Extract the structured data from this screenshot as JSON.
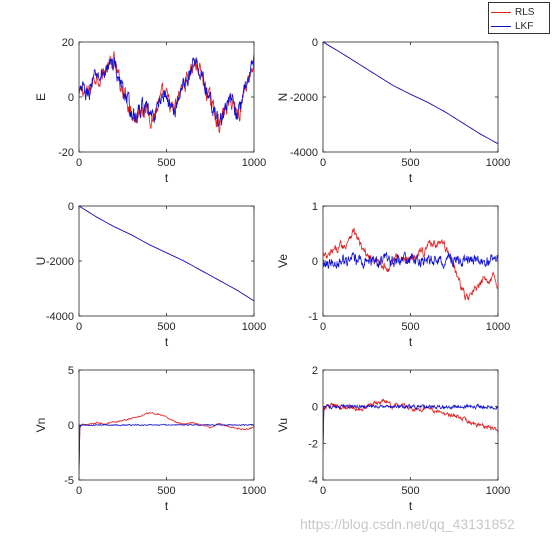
{
  "watermark": "https://blog.csdn.net/qq_43131852",
  "colors": {
    "RLS": "#e02020",
    "LKF": "#1010d0"
  },
  "legend": [
    {
      "name": "RLS",
      "color": "#e02020"
    },
    {
      "name": "LKF",
      "color": "#1010d0"
    }
  ],
  "chart_data": [
    {
      "type": "line",
      "id": "E",
      "xlabel": "t",
      "ylabel": "E",
      "xlim": [
        0,
        1000
      ],
      "ylim": [
        -20,
        20
      ],
      "xticks": [
        "0",
        "500",
        "1000"
      ],
      "xtick_values": [
        0,
        500,
        1000
      ],
      "yticks": [
        "-20",
        "0",
        "20"
      ],
      "ytick_values": [
        -20,
        0,
        20
      ],
      "series": [
        {
          "name": "RLS",
          "color": "#e02020",
          "x": [
            0,
            20,
            40,
            60,
            80,
            100,
            120,
            140,
            160,
            180,
            200,
            220,
            240,
            260,
            280,
            300,
            320,
            340,
            360,
            380,
            400,
            420,
            440,
            460,
            480,
            500,
            520,
            540,
            560,
            580,
            600,
            620,
            640,
            660,
            680,
            700,
            720,
            740,
            760,
            780,
            800,
            820,
            840,
            860,
            880,
            900,
            920,
            940,
            960,
            980,
            1000
          ],
          "y": [
            0,
            3,
            1,
            2,
            6,
            8,
            7,
            9,
            10,
            12,
            13,
            8,
            4,
            2,
            -2,
            -5,
            -8,
            -6,
            -3,
            -5,
            -6,
            -8,
            -5,
            -2,
            1,
            0,
            -3,
            -6,
            -2,
            2,
            5,
            7,
            10,
            12,
            11,
            8,
            4,
            0,
            -3,
            -6,
            -10,
            -7,
            -4,
            -2,
            -1,
            -6,
            -5,
            2,
            6,
            9,
            13
          ],
          "noise": 2.5
        },
        {
          "name": "LKF",
          "color": "#1010d0",
          "x": [
            0,
            20,
            40,
            60,
            80,
            100,
            120,
            140,
            160,
            180,
            200,
            220,
            240,
            260,
            280,
            300,
            320,
            340,
            360,
            380,
            400,
            420,
            440,
            460,
            480,
            500,
            520,
            540,
            560,
            580,
            600,
            620,
            640,
            660,
            680,
            700,
            720,
            740,
            760,
            780,
            800,
            820,
            840,
            860,
            880,
            900,
            920,
            940,
            960,
            980,
            1000
          ],
          "y": [
            0,
            3,
            1,
            2,
            6,
            8,
            7,
            9,
            10,
            12,
            13,
            8,
            4,
            2,
            -2,
            -5,
            -8,
            -6,
            -3,
            -5,
            -6,
            -8,
            -5,
            -2,
            1,
            0,
            -3,
            -6,
            -2,
            2,
            5,
            7,
            10,
            12,
            11,
            8,
            4,
            0,
            -3,
            -6,
            -10,
            -7,
            -4,
            -2,
            -1,
            -6,
            -5,
            2,
            6,
            9,
            13
          ],
          "noise": 2.5
        }
      ]
    },
    {
      "type": "line",
      "id": "N",
      "xlabel": "t",
      "ylabel": "N",
      "xlim": [
        0,
        1000
      ],
      "ylim": [
        -4000,
        0
      ],
      "xticks": [
        "0",
        "500",
        "1000"
      ],
      "xtick_values": [
        0,
        500,
        1000
      ],
      "yticks": [
        "-4000",
        "-2000",
        "0"
      ],
      "ytick_values": [
        -4000,
        -2000,
        0
      ],
      "series": [
        {
          "name": "RLS",
          "color": "#e02020",
          "x": [
            0,
            100,
            200,
            300,
            400,
            500,
            600,
            700,
            800,
            900,
            1000
          ],
          "y": [
            0,
            -380,
            -780,
            -1180,
            -1580,
            -1900,
            -2200,
            -2550,
            -2950,
            -3350,
            -3700
          ],
          "noise": 0
        },
        {
          "name": "LKF",
          "color": "#1010d0",
          "x": [
            0,
            100,
            200,
            300,
            400,
            500,
            600,
            700,
            800,
            900,
            1000
          ],
          "y": [
            0,
            -380,
            -780,
            -1180,
            -1580,
            -1900,
            -2200,
            -2550,
            -2950,
            -3350,
            -3700
          ],
          "noise": 0
        }
      ]
    },
    {
      "type": "line",
      "id": "U",
      "xlabel": "t",
      "ylabel": "U",
      "xlim": [
        0,
        1000
      ],
      "ylim": [
        -4000,
        0
      ],
      "xticks": [
        "0",
        "500",
        "1000"
      ],
      "xtick_values": [
        0,
        500,
        1000
      ],
      "yticks": [
        "-4000",
        "-2000",
        "0"
      ],
      "ytick_values": [
        -4000,
        -2000,
        0
      ],
      "series": [
        {
          "name": "RLS",
          "color": "#e02020",
          "x": [
            0,
            100,
            200,
            300,
            400,
            500,
            600,
            700,
            800,
            900,
            1000
          ],
          "y": [
            0,
            -400,
            -750,
            -1050,
            -1400,
            -1700,
            -2000,
            -2350,
            -2700,
            -3050,
            -3450
          ],
          "noise": 0
        },
        {
          "name": "LKF",
          "color": "#1010d0",
          "x": [
            0,
            100,
            200,
            300,
            400,
            500,
            600,
            700,
            800,
            900,
            1000
          ],
          "y": [
            0,
            -400,
            -750,
            -1050,
            -1400,
            -1700,
            -2000,
            -2350,
            -2700,
            -3050,
            -3450
          ],
          "noise": 0
        }
      ]
    },
    {
      "type": "line",
      "id": "Ve",
      "xlabel": "t",
      "ylabel": "Ve",
      "xlim": [
        0,
        1000
      ],
      "ylim": [
        -1,
        1
      ],
      "xticks": [
        "0",
        "500",
        "1000"
      ],
      "xtick_values": [
        0,
        500,
        1000
      ],
      "yticks": [
        "-1",
        "0",
        "1"
      ],
      "ytick_values": [
        -1,
        0,
        1
      ],
      "series": [
        {
          "name": "RLS",
          "color": "#e02020",
          "x": [
            0,
            25,
            50,
            75,
            100,
            125,
            150,
            175,
            200,
            225,
            250,
            275,
            300,
            325,
            350,
            375,
            400,
            425,
            450,
            475,
            500,
            525,
            550,
            575,
            600,
            625,
            650,
            675,
            700,
            725,
            750,
            775,
            800,
            825,
            850,
            875,
            900,
            925,
            950,
            975,
            1000
          ],
          "y": [
            0.1,
            0.05,
            0.15,
            0.2,
            0.3,
            0.25,
            0.45,
            0.55,
            0.4,
            0.2,
            0.1,
            0.05,
            -0.05,
            0.0,
            -0.1,
            -0.15,
            0.0,
            0.1,
            0.05,
            0.0,
            0.05,
            0.1,
            0.2,
            0.15,
            0.3,
            0.35,
            0.3,
            0.35,
            0.25,
            0.1,
            -0.1,
            -0.35,
            -0.55,
            -0.7,
            -0.6,
            -0.5,
            -0.45,
            -0.3,
            -0.35,
            -0.25,
            -0.45
          ],
          "noise": 0.06
        },
        {
          "name": "LKF",
          "color": "#1010d0",
          "x": [
            0,
            100,
            200,
            300,
            400,
            500,
            600,
            700,
            800,
            900,
            1000
          ],
          "y": [
            0,
            0,
            0,
            0,
            0,
            0,
            0,
            0,
            0,
            0,
            0
          ],
          "noise": 0.09
        }
      ]
    },
    {
      "type": "line",
      "id": "Vn",
      "xlabel": "t",
      "ylabel": "Vn",
      "xlim": [
        0,
        1000
      ],
      "ylim": [
        -5,
        5
      ],
      "xticks": [
        "0",
        "500",
        "1000"
      ],
      "xtick_values": [
        0,
        500,
        1000
      ],
      "yticks": [
        "-5",
        "0",
        "5"
      ],
      "ytick_values": [
        -5,
        0,
        5
      ],
      "series": [
        {
          "name": "RLS",
          "color": "#e02020",
          "x": [
            0,
            5,
            20,
            50,
            100,
            150,
            200,
            250,
            300,
            350,
            400,
            450,
            500,
            550,
            600,
            650,
            700,
            750,
            800,
            850,
            900,
            950,
            1000
          ],
          "y": [
            -4.5,
            -0.2,
            0.1,
            0.0,
            0.2,
            0.1,
            0.3,
            0.4,
            0.6,
            0.8,
            1.1,
            1.0,
            0.7,
            0.3,
            0.1,
            0.2,
            0.0,
            -0.2,
            0.1,
            -0.1,
            -0.3,
            -0.4,
            -0.2
          ],
          "noise": 0.05
        },
        {
          "name": "LKF",
          "color": "#1010d0",
          "x": [
            0,
            5,
            20,
            100,
            200,
            300,
            400,
            500,
            600,
            700,
            800,
            900,
            1000
          ],
          "y": [
            -4.5,
            -0.1,
            0.0,
            0.0,
            0.0,
            0.0,
            0.0,
            0.0,
            0.0,
            0.0,
            0.0,
            0.0,
            0.0
          ],
          "noise": 0.04
        }
      ]
    },
    {
      "type": "line",
      "id": "Vu",
      "xlabel": "t",
      "ylabel": "Vu",
      "xlim": [
        0,
        1000
      ],
      "ylim": [
        -4,
        2
      ],
      "xticks": [
        "0",
        "500",
        "1000"
      ],
      "xtick_values": [
        0,
        500,
        1000
      ],
      "yticks": [
        "-4",
        "-2",
        "0",
        "2"
      ],
      "ytick_values": [
        -4,
        -2,
        0,
        2
      ],
      "series": [
        {
          "name": "RLS",
          "color": "#e02020",
          "x": [
            0,
            5,
            20,
            50,
            100,
            150,
            200,
            250,
            300,
            350,
            400,
            450,
            500,
            550,
            600,
            650,
            700,
            750,
            800,
            850,
            900,
            950,
            1000
          ],
          "y": [
            -2.5,
            -0.2,
            0.0,
            0.1,
            -0.1,
            0.0,
            -0.2,
            0.0,
            0.2,
            0.3,
            0.0,
            0.1,
            -0.1,
            -0.2,
            0.0,
            -0.3,
            -0.4,
            -0.5,
            -0.7,
            -0.9,
            -1.0,
            -1.1,
            -1.3
          ],
          "noise": 0.1
        },
        {
          "name": "LKF",
          "color": "#1010d0",
          "x": [
            0,
            5,
            20,
            100,
            200,
            300,
            400,
            500,
            600,
            700,
            800,
            900,
            1000
          ],
          "y": [
            -2.5,
            -0.1,
            0.0,
            0.0,
            0.0,
            0.0,
            0.0,
            0.0,
            0.0,
            0.0,
            0.0,
            0.0,
            0.0
          ],
          "noise": 0.08
        }
      ]
    }
  ]
}
